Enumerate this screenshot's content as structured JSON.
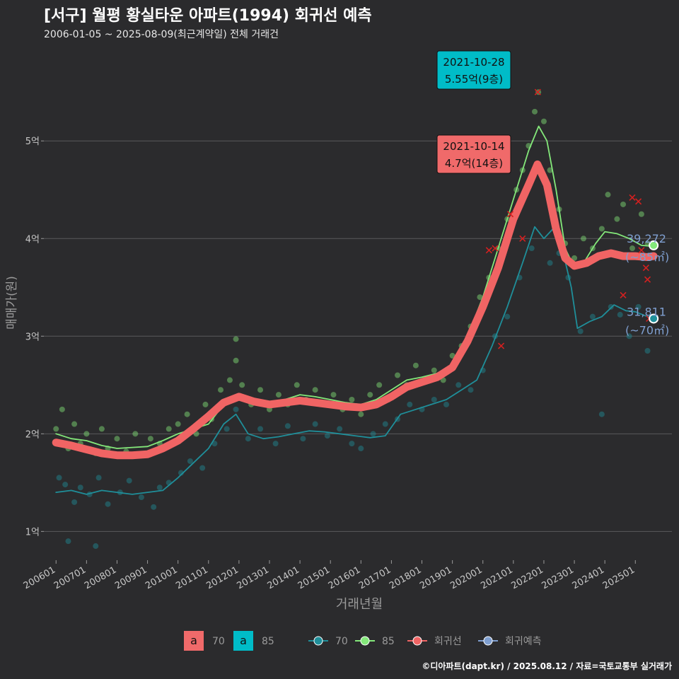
{
  "title": "[서구] 월평 황실타운 아파트(1994) 회귀선 예측",
  "subtitle": "2006-01-05 ~ 2025-08-09(최근계약일) 전체 거래건",
  "caption": "©디아파트(dapt.kr) / 2025.08.12 / 자료=국토교통부 실거래가",
  "colors": {
    "background": "#2b2b2d",
    "grid": "#5a5a5c",
    "s70": "#1f8f9a",
    "s85": "#84e87a",
    "regression": "#f06464",
    "forecast": "#7f9fd0",
    "label70_fill": "#f06a6a",
    "label85_fill": "#00bcc8"
  },
  "chart_data": {
    "type": "line",
    "xlabel": "거래년월",
    "ylabel": "매매가(원)",
    "x_ticks": [
      "200601",
      "200701",
      "200801",
      "200901",
      "201001",
      "201101",
      "201201",
      "201301",
      "201401",
      "201501",
      "201601",
      "201701",
      "201801",
      "201901",
      "202001",
      "202101",
      "202201",
      "202301",
      "202401",
      "202501"
    ],
    "y_ticks": [
      "1억",
      "2억",
      "3억",
      "4억",
      "5억"
    ],
    "y_tick_values": [
      1,
      2,
      3,
      4,
      5
    ],
    "ylim": [
      0.72,
      5.9
    ],
    "xlim": [
      2005.6,
      2026.2
    ],
    "series": [
      {
        "name": "70",
        "points": [
          [
            2006.0,
            1.4
          ],
          [
            2006.5,
            1.42
          ],
          [
            2007.0,
            1.38
          ],
          [
            2007.5,
            1.42
          ],
          [
            2008.0,
            1.4
          ],
          [
            2008.5,
            1.38
          ],
          [
            2009.0,
            1.4
          ],
          [
            2009.5,
            1.42
          ],
          [
            2010.0,
            1.55
          ],
          [
            2010.5,
            1.7
          ],
          [
            2011.0,
            1.85
          ],
          [
            2011.5,
            2.1
          ],
          [
            2011.9,
            2.2
          ],
          [
            2012.3,
            2.0
          ],
          [
            2012.8,
            1.95
          ],
          [
            2013.3,
            1.97
          ],
          [
            2013.8,
            2.0
          ],
          [
            2014.3,
            2.03
          ],
          [
            2014.8,
            2.02
          ],
          [
            2015.3,
            2.0
          ],
          [
            2015.8,
            1.98
          ],
          [
            2016.3,
            1.96
          ],
          [
            2016.8,
            1.98
          ],
          [
            2017.3,
            2.2
          ],
          [
            2017.8,
            2.25
          ],
          [
            2018.3,
            2.3
          ],
          [
            2018.8,
            2.35
          ],
          [
            2019.3,
            2.45
          ],
          [
            2019.8,
            2.55
          ],
          [
            2020.3,
            2.9
          ],
          [
            2020.8,
            3.3
          ],
          [
            2021.3,
            3.75
          ],
          [
            2021.7,
            4.12
          ],
          [
            2022.0,
            4.0
          ],
          [
            2022.3,
            4.1
          ],
          [
            2022.6,
            3.9
          ],
          [
            2022.9,
            3.5
          ],
          [
            2023.1,
            3.08
          ],
          [
            2023.5,
            3.15
          ],
          [
            2023.9,
            3.2
          ],
          [
            2024.3,
            3.32
          ],
          [
            2024.7,
            3.26
          ],
          [
            2025.0,
            3.25
          ],
          [
            2025.4,
            3.2
          ],
          [
            2025.6,
            3.18
          ]
        ]
      },
      {
        "name": "85",
        "points": [
          [
            2006.0,
            2.0
          ],
          [
            2006.5,
            1.95
          ],
          [
            2007.0,
            1.93
          ],
          [
            2007.5,
            1.88
          ],
          [
            2008.0,
            1.85
          ],
          [
            2008.5,
            1.86
          ],
          [
            2009.0,
            1.87
          ],
          [
            2009.5,
            1.93
          ],
          [
            2010.0,
            2.0
          ],
          [
            2010.5,
            2.05
          ],
          [
            2011.0,
            2.1
          ],
          [
            2011.5,
            2.3
          ],
          [
            2012.0,
            2.4
          ],
          [
            2012.5,
            2.33
          ],
          [
            2013.0,
            2.3
          ],
          [
            2013.5,
            2.35
          ],
          [
            2014.0,
            2.4
          ],
          [
            2014.5,
            2.38
          ],
          [
            2015.0,
            2.35
          ],
          [
            2015.5,
            2.32
          ],
          [
            2016.0,
            2.3
          ],
          [
            2016.5,
            2.35
          ],
          [
            2017.0,
            2.45
          ],
          [
            2017.5,
            2.55
          ],
          [
            2018.0,
            2.58
          ],
          [
            2018.5,
            2.62
          ],
          [
            2019.0,
            2.7
          ],
          [
            2019.5,
            3.0
          ],
          [
            2020.0,
            3.4
          ],
          [
            2020.5,
            3.9
          ],
          [
            2021.0,
            4.4
          ],
          [
            2021.5,
            4.9
          ],
          [
            2021.83,
            5.15
          ],
          [
            2022.1,
            5.0
          ],
          [
            2022.4,
            4.5
          ],
          [
            2022.7,
            3.9
          ],
          [
            2023.0,
            3.7
          ],
          [
            2023.3,
            3.75
          ],
          [
            2023.7,
            3.95
          ],
          [
            2024.0,
            4.07
          ],
          [
            2024.4,
            4.05
          ],
          [
            2024.8,
            4.0
          ],
          [
            2025.2,
            3.93
          ],
          [
            2025.6,
            3.92
          ]
        ]
      },
      {
        "name": "회귀선",
        "points": [
          [
            2006.0,
            1.91
          ],
          [
            2006.5,
            1.88
          ],
          [
            2007.0,
            1.84
          ],
          [
            2007.5,
            1.8
          ],
          [
            2008.0,
            1.78
          ],
          [
            2008.5,
            1.78
          ],
          [
            2009.0,
            1.79
          ],
          [
            2009.5,
            1.85
          ],
          [
            2010.0,
            1.93
          ],
          [
            2010.5,
            2.05
          ],
          [
            2011.0,
            2.18
          ],
          [
            2011.5,
            2.32
          ],
          [
            2012.0,
            2.38
          ],
          [
            2012.5,
            2.33
          ],
          [
            2013.0,
            2.3
          ],
          [
            2013.5,
            2.32
          ],
          [
            2014.0,
            2.34
          ],
          [
            2014.5,
            2.32
          ],
          [
            2015.0,
            2.3
          ],
          [
            2015.5,
            2.28
          ],
          [
            2016.0,
            2.27
          ],
          [
            2016.5,
            2.3
          ],
          [
            2017.0,
            2.38
          ],
          [
            2017.5,
            2.48
          ],
          [
            2018.0,
            2.53
          ],
          [
            2018.5,
            2.58
          ],
          [
            2019.0,
            2.68
          ],
          [
            2019.5,
            2.95
          ],
          [
            2020.0,
            3.3
          ],
          [
            2020.5,
            3.7
          ],
          [
            2021.0,
            4.2
          ],
          [
            2021.5,
            4.55
          ],
          [
            2021.79,
            4.76
          ],
          [
            2022.1,
            4.55
          ],
          [
            2022.4,
            4.1
          ],
          [
            2022.7,
            3.8
          ],
          [
            2023.0,
            3.72
          ],
          [
            2023.4,
            3.75
          ],
          [
            2023.8,
            3.82
          ],
          [
            2024.2,
            3.85
          ],
          [
            2024.6,
            3.82
          ],
          [
            2025.0,
            3.82
          ],
          [
            2025.4,
            3.81
          ],
          [
            2025.6,
            3.82
          ]
        ]
      }
    ],
    "scatter": [
      {
        "name": "70",
        "points": [
          [
            2006.1,
            1.55
          ],
          [
            2006.3,
            1.48
          ],
          [
            2006.6,
            1.3
          ],
          [
            2006.8,
            1.45
          ],
          [
            2007.1,
            1.38
          ],
          [
            2007.4,
            1.55
          ],
          [
            2007.7,
            1.28
          ],
          [
            2008.1,
            1.4
          ],
          [
            2008.4,
            1.52
          ],
          [
            2008.8,
            1.35
          ],
          [
            2009.2,
            1.25
          ],
          [
            2009.4,
            1.45
          ],
          [
            2009.7,
            1.5
          ],
          [
            2010.1,
            1.6
          ],
          [
            2010.4,
            1.72
          ],
          [
            2010.8,
            1.65
          ],
          [
            2011.2,
            1.9
          ],
          [
            2011.6,
            2.05
          ],
          [
            2011.9,
            2.25
          ],
          [
            2012.3,
            1.95
          ],
          [
            2012.7,
            2.05
          ],
          [
            2013.2,
            1.9
          ],
          [
            2013.6,
            2.08
          ],
          [
            2014.1,
            1.95
          ],
          [
            2014.5,
            2.1
          ],
          [
            2014.9,
            1.98
          ],
          [
            2015.3,
            2.05
          ],
          [
            2015.7,
            1.9
          ],
          [
            2016.0,
            1.85
          ],
          [
            2016.4,
            2.0
          ],
          [
            2016.8,
            2.1
          ],
          [
            2017.2,
            2.15
          ],
          [
            2017.6,
            2.3
          ],
          [
            2018.0,
            2.25
          ],
          [
            2018.4,
            2.35
          ],
          [
            2018.8,
            2.3
          ],
          [
            2019.2,
            2.5
          ],
          [
            2019.6,
            2.45
          ],
          [
            2020.0,
            2.65
          ],
          [
            2020.4,
            3.0
          ],
          [
            2020.8,
            3.2
          ],
          [
            2021.2,
            3.6
          ],
          [
            2021.6,
            3.9
          ],
          [
            2022.2,
            3.75
          ],
          [
            2022.5,
            3.85
          ],
          [
            2022.8,
            3.6
          ],
          [
            2023.2,
            3.05
          ],
          [
            2023.6,
            3.2
          ],
          [
            2023.9,
            2.2
          ],
          [
            2024.2,
            3.3
          ],
          [
            2024.5,
            3.22
          ],
          [
            2024.8,
            3.0
          ],
          [
            2025.1,
            3.3
          ],
          [
            2025.4,
            2.85
          ],
          [
            2006.4,
            0.9
          ],
          [
            2007.3,
            0.85
          ]
        ]
      },
      {
        "name": "85",
        "points": [
          [
            2006.0,
            2.05
          ],
          [
            2006.2,
            2.25
          ],
          [
            2006.4,
            1.85
          ],
          [
            2006.6,
            2.1
          ],
          [
            2006.8,
            1.9
          ],
          [
            2007.0,
            2.0
          ],
          [
            2007.3,
            1.8
          ],
          [
            2007.5,
            2.05
          ],
          [
            2007.7,
            1.85
          ],
          [
            2008.0,
            1.95
          ],
          [
            2008.3,
            1.82
          ],
          [
            2008.6,
            2.0
          ],
          [
            2008.9,
            1.78
          ],
          [
            2009.1,
            1.95
          ],
          [
            2009.4,
            1.9
          ],
          [
            2009.7,
            2.05
          ],
          [
            2010.0,
            2.1
          ],
          [
            2010.3,
            2.2
          ],
          [
            2010.6,
            2.0
          ],
          [
            2010.9,
            2.3
          ],
          [
            2011.1,
            2.15
          ],
          [
            2011.4,
            2.45
          ],
          [
            2011.7,
            2.55
          ],
          [
            2011.9,
            2.75
          ],
          [
            2012.1,
            2.5
          ],
          [
            2012.4,
            2.3
          ],
          [
            2012.7,
            2.45
          ],
          [
            2013.0,
            2.25
          ],
          [
            2013.3,
            2.4
          ],
          [
            2013.6,
            2.3
          ],
          [
            2013.9,
            2.5
          ],
          [
            2014.2,
            2.35
          ],
          [
            2014.5,
            2.45
          ],
          [
            2014.8,
            2.3
          ],
          [
            2015.1,
            2.4
          ],
          [
            2015.4,
            2.25
          ],
          [
            2015.7,
            2.35
          ],
          [
            2016.0,
            2.2
          ],
          [
            2016.3,
            2.4
          ],
          [
            2016.6,
            2.5
          ],
          [
            2016.9,
            2.35
          ],
          [
            2017.2,
            2.6
          ],
          [
            2017.5,
            2.5
          ],
          [
            2017.8,
            2.7
          ],
          [
            2018.1,
            2.55
          ],
          [
            2018.4,
            2.65
          ],
          [
            2018.7,
            2.55
          ],
          [
            2019.0,
            2.8
          ],
          [
            2019.3,
            2.9
          ],
          [
            2019.6,
            3.1
          ],
          [
            2019.9,
            3.4
          ],
          [
            2020.2,
            3.6
          ],
          [
            2020.5,
            3.9
          ],
          [
            2020.8,
            4.2
          ],
          [
            2021.1,
            4.5
          ],
          [
            2021.3,
            4.7
          ],
          [
            2021.5,
            4.95
          ],
          [
            2021.7,
            5.3
          ],
          [
            2021.82,
            5.5
          ],
          [
            2022.0,
            5.2
          ],
          [
            2022.2,
            4.7
          ],
          [
            2022.5,
            4.3
          ],
          [
            2022.7,
            3.95
          ],
          [
            2023.0,
            3.8
          ],
          [
            2023.3,
            4.0
          ],
          [
            2023.6,
            3.9
          ],
          [
            2023.9,
            4.1
          ],
          [
            2024.1,
            4.45
          ],
          [
            2024.4,
            4.2
          ],
          [
            2024.6,
            4.35
          ],
          [
            2024.9,
            3.9
          ],
          [
            2025.2,
            4.25
          ],
          [
            2025.4,
            3.95
          ],
          [
            2011.9,
            2.97
          ],
          [
            2025.55,
            3.94
          ]
        ]
      }
    ],
    "regression_markers": [
      [
        2020.2,
        3.88
      ],
      [
        2020.4,
        3.9
      ],
      [
        2020.6,
        2.9
      ],
      [
        2020.9,
        4.25
      ],
      [
        2021.3,
        4.0
      ],
      [
        2021.8,
        5.5
      ],
      [
        2024.6,
        3.42
      ],
      [
        2024.9,
        4.42
      ],
      [
        2025.1,
        4.38
      ],
      [
        2025.2,
        3.88
      ],
      [
        2025.35,
        3.7
      ],
      [
        2025.4,
        3.58
      ],
      [
        2025.45,
        3.18
      ]
    ],
    "endpoints": [
      {
        "series": "85",
        "x": 2025.6,
        "y": 3.93,
        "value": "39,272",
        "label": "(~85㎡)"
      },
      {
        "series": "70",
        "x": 2025.6,
        "y": 3.18,
        "value": "31,811",
        "label": "(~70㎡)"
      }
    ],
    "annotations": [
      {
        "date": "2021-10-28",
        "text": "5.55억(9층)",
        "x": 2021.82,
        "y": 5.5,
        "style": "85"
      },
      {
        "date": "2021-10-14",
        "text": "4.7억(14층)",
        "x": 2021.79,
        "y": 4.76,
        "style": "70"
      }
    ],
    "legend": {
      "position": "bottom",
      "label_keys": [
        {
          "glyph": "a",
          "name": "70",
          "style": "label70"
        },
        {
          "glyph": "a",
          "name": "85",
          "style": "label85"
        }
      ],
      "line_keys": [
        {
          "name": "70",
          "style": "s70"
        },
        {
          "name": "85",
          "style": "s85"
        },
        {
          "name": "회귀선",
          "style": "regression"
        },
        {
          "name": "회귀예측",
          "style": "forecast"
        }
      ]
    }
  }
}
